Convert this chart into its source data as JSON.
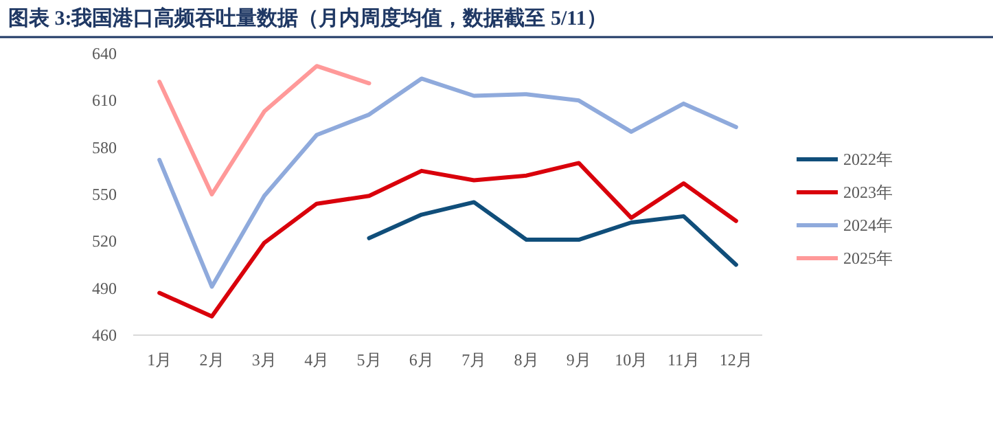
{
  "chart_data": {
    "type": "line",
    "title": "图表 3:我国港口高频吞吐量数据（月内周度均值，数据截至 5/11）",
    "categories": [
      "1月",
      "2月",
      "3月",
      "4月",
      "5月",
      "6月",
      "7月",
      "8月",
      "9月",
      "10月",
      "11月",
      "12月"
    ],
    "series": [
      {
        "name": "2022年",
        "color": "#104e7a",
        "values": [
          null,
          null,
          null,
          null,
          522,
          537,
          545,
          521,
          521,
          532,
          536,
          505
        ]
      },
      {
        "name": "2023年",
        "color": "#d9000b",
        "values": [
          487,
          472,
          519,
          544,
          549,
          565,
          559,
          562,
          570,
          535,
          557,
          533
        ]
      },
      {
        "name": "2024年",
        "color": "#8faadc",
        "values": [
          572,
          491,
          549,
          588,
          601,
          624,
          613,
          614,
          610,
          590,
          608,
          593
        ]
      },
      {
        "name": "2025年",
        "color": "#ff9999",
        "values": [
          622,
          550,
          603,
          632,
          621,
          null,
          null,
          null,
          null,
          null,
          null,
          null
        ]
      }
    ],
    "ylim": [
      460,
      640
    ],
    "yticks": [
      460,
      490,
      520,
      550,
      580,
      610,
      640
    ],
    "grid": false,
    "legend": "right",
    "marker": "none",
    "line_style": "solid"
  }
}
